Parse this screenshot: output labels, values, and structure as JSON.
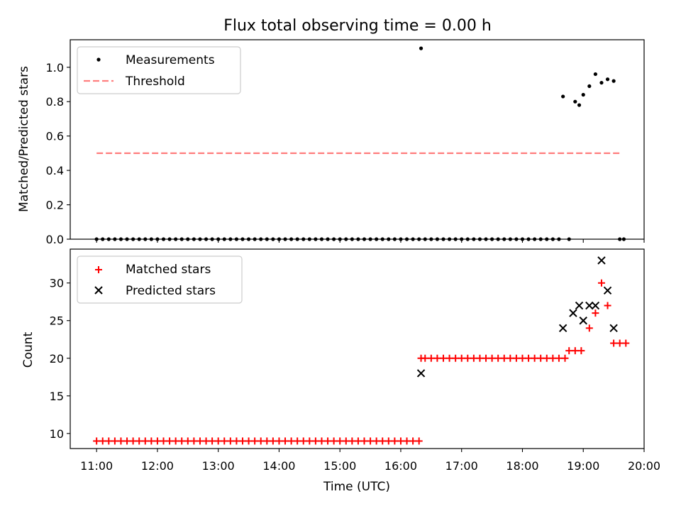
{
  "figure": {
    "title": "Flux total observing time = 0.00 h"
  },
  "chart_data": [
    {
      "type": "scatter",
      "ylabel": "Matched/Predicted stars",
      "xlim": [
        "10:34",
        "20:00"
      ],
      "ylim": [
        0,
        1.16
      ],
      "yticks": [
        "0.0",
        "0.2",
        "0.4",
        "0.6",
        "0.8",
        "1.0"
      ],
      "grid": false,
      "legend_position": "top-left",
      "series": [
        {
          "name": "Measurements",
          "marker": "dot",
          "color": "#000000",
          "times": [
            "11:00",
            "11:06",
            "11:12",
            "11:18",
            "11:24",
            "11:30",
            "11:36",
            "11:42",
            "11:48",
            "11:54",
            "12:00",
            "12:06",
            "12:12",
            "12:18",
            "12:24",
            "12:30",
            "12:36",
            "12:42",
            "12:48",
            "12:54",
            "13:00",
            "13:06",
            "13:12",
            "13:18",
            "13:24",
            "13:30",
            "13:36",
            "13:42",
            "13:48",
            "13:54",
            "14:00",
            "14:06",
            "14:12",
            "14:18",
            "14:24",
            "14:30",
            "14:36",
            "14:42",
            "14:48",
            "14:54",
            "15:00",
            "15:06",
            "15:12",
            "15:18",
            "15:24",
            "15:30",
            "15:36",
            "15:42",
            "15:48",
            "15:54",
            "16:00",
            "16:06",
            "16:12",
            "16:18",
            "16:20",
            "16:24",
            "16:30",
            "16:36",
            "16:42",
            "16:48",
            "16:54",
            "17:00",
            "17:06",
            "17:12",
            "17:18",
            "17:24",
            "17:30",
            "17:36",
            "17:42",
            "17:48",
            "17:54",
            "18:00",
            "18:06",
            "18:12",
            "18:18",
            "18:24",
            "18:30",
            "18:36",
            "18:40",
            "18:46",
            "18:52",
            "18:56",
            "19:00",
            "19:06",
            "19:12",
            "19:18",
            "19:24",
            "19:30",
            "19:36",
            "19:40"
          ],
          "values": [
            0,
            0,
            0,
            0,
            0,
            0,
            0,
            0,
            0,
            0,
            0,
            0,
            0,
            0,
            0,
            0,
            0,
            0,
            0,
            0,
            0,
            0,
            0,
            0,
            0,
            0,
            0,
            0,
            0,
            0,
            0,
            0,
            0,
            0,
            0,
            0,
            0,
            0,
            0,
            0,
            0,
            0,
            0,
            0,
            0,
            0,
            0,
            0,
            0,
            0,
            0,
            0,
            0,
            0,
            1.11,
            0,
            0,
            0,
            0,
            0,
            0,
            0,
            0,
            0,
            0,
            0,
            0,
            0,
            0,
            0,
            0,
            0,
            0,
            0,
            0,
            0,
            0,
            0,
            0.83,
            0,
            0.8,
            0.78,
            0.84,
            0.89,
            0.96,
            0.91,
            0.93,
            0.92,
            0,
            0
          ]
        },
        {
          "name": "Threshold",
          "marker": "dashed-line",
          "color": "#ff7f7f",
          "times": [
            "11:00",
            "19:36"
          ],
          "values": [
            0.5,
            0.5
          ]
        }
      ]
    },
    {
      "type": "scatter",
      "xlabel": "Time (UTC)",
      "ylabel": "Count",
      "xlim": [
        "10:34",
        "20:00"
      ],
      "ylim": [
        8,
        34.5
      ],
      "yticks": [
        "10",
        "15",
        "20",
        "25",
        "30"
      ],
      "xticks": [
        "11:00",
        "12:00",
        "13:00",
        "14:00",
        "15:00",
        "16:00",
        "17:00",
        "18:00",
        "19:00",
        "20:00"
      ],
      "grid": false,
      "legend_position": "top-left",
      "series": [
        {
          "name": "Matched stars",
          "marker": "plus",
          "color": "#ff0000",
          "times": [
            "11:00",
            "11:06",
            "11:12",
            "11:18",
            "11:24",
            "11:30",
            "11:36",
            "11:42",
            "11:48",
            "11:54",
            "12:00",
            "12:06",
            "12:12",
            "12:18",
            "12:24",
            "12:30",
            "12:36",
            "12:42",
            "12:48",
            "12:54",
            "13:00",
            "13:06",
            "13:12",
            "13:18",
            "13:24",
            "13:30",
            "13:36",
            "13:42",
            "13:48",
            "13:54",
            "14:00",
            "14:06",
            "14:12",
            "14:18",
            "14:24",
            "14:30",
            "14:36",
            "14:42",
            "14:48",
            "14:54",
            "15:00",
            "15:06",
            "15:12",
            "15:18",
            "15:24",
            "15:30",
            "15:36",
            "15:42",
            "15:48",
            "15:54",
            "16:00",
            "16:06",
            "16:12",
            "16:18",
            "16:20",
            "16:24",
            "16:30",
            "16:36",
            "16:42",
            "16:48",
            "16:54",
            "17:00",
            "17:06",
            "17:12",
            "17:18",
            "17:24",
            "17:30",
            "17:36",
            "17:42",
            "17:48",
            "17:54",
            "18:00",
            "18:06",
            "18:12",
            "18:18",
            "18:24",
            "18:30",
            "18:36",
            "18:42",
            "18:46",
            "18:52",
            "18:58",
            "19:06",
            "19:12",
            "19:18",
            "19:24",
            "19:30",
            "19:36",
            "19:42"
          ],
          "values": [
            9,
            9,
            9,
            9,
            9,
            9,
            9,
            9,
            9,
            9,
            9,
            9,
            9,
            9,
            9,
            9,
            9,
            9,
            9,
            9,
            9,
            9,
            9,
            9,
            9,
            9,
            9,
            9,
            9,
            9,
            9,
            9,
            9,
            9,
            9,
            9,
            9,
            9,
            9,
            9,
            9,
            9,
            9,
            9,
            9,
            9,
            9,
            9,
            9,
            9,
            9,
            9,
            9,
            9,
            20,
            20,
            20,
            20,
            20,
            20,
            20,
            20,
            20,
            20,
            20,
            20,
            20,
            20,
            20,
            20,
            20,
            20,
            20,
            20,
            20,
            20,
            20,
            20,
            20,
            21,
            21,
            21,
            24,
            26,
            30,
            27,
            22,
            22,
            22
          ]
        },
        {
          "name": "Predicted stars",
          "marker": "x",
          "color": "#000000",
          "times": [
            "16:20",
            "18:40",
            "18:50",
            "18:56",
            "19:00",
            "19:06",
            "19:12",
            "19:18",
            "19:24",
            "19:30"
          ],
          "values": [
            18,
            24,
            26,
            27,
            25,
            27,
            27,
            33,
            29,
            24
          ]
        }
      ]
    }
  ]
}
